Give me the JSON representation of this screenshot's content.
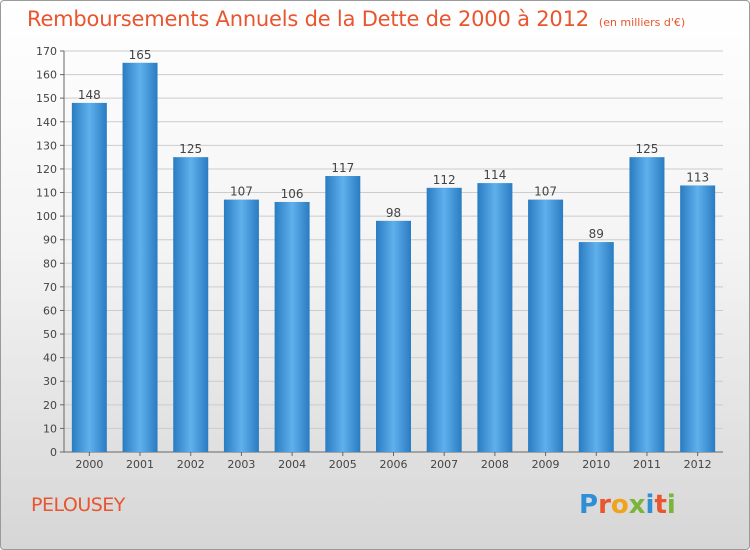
{
  "title": "Remboursements Annuels de la Dette de 2000 à 2012",
  "unit": "(en milliers d'€)",
  "commune": "PELOUSEY",
  "logo": {
    "letters": [
      "P",
      "r",
      "o",
      "x",
      "i",
      "t",
      "i"
    ],
    "colors": [
      "#2e8fd6",
      "#e8552e",
      "#f0a21b",
      "#7ab53a",
      "#2e8fd6",
      "#e8552e",
      "#7ab53a"
    ]
  },
  "colors": {
    "bar": "#3a95dc",
    "bar_light": "#5fb0ec",
    "bar_dark": "#2a7cc2",
    "title": "#e8552e",
    "grid": "#cccccc"
  },
  "chart_data": {
    "type": "bar",
    "title": "Remboursements Annuels de la Dette de 2000 à 2012",
    "categories": [
      "2000",
      "2001",
      "2002",
      "2003",
      "2004",
      "2005",
      "2006",
      "2007",
      "2008",
      "2009",
      "2010",
      "2011",
      "2012"
    ],
    "values": [
      148,
      165,
      125,
      107,
      106,
      117,
      98,
      112,
      114,
      107,
      89,
      125,
      113
    ],
    "ylim": [
      0,
      170
    ],
    "ytick_step": 10,
    "grid": true,
    "xlabel": "",
    "ylabel": ""
  }
}
